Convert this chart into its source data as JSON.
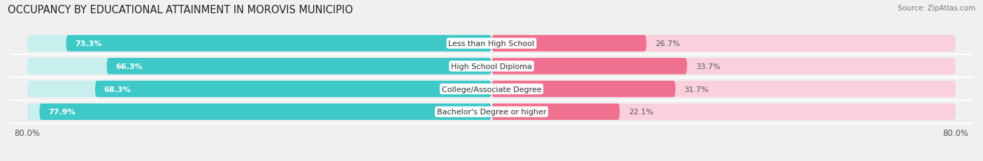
{
  "title": "OCCUPANCY BY EDUCATIONAL ATTAINMENT IN MOROVIS MUNICIPIO",
  "source": "Source: ZipAtlas.com",
  "categories": [
    "Less than High School",
    "High School Diploma",
    "College/Associate Degree",
    "Bachelor's Degree or higher"
  ],
  "owner_values": [
    73.3,
    66.3,
    68.3,
    77.9
  ],
  "renter_values": [
    26.7,
    33.7,
    31.7,
    22.1
  ],
  "owner_color": "#3ec8c8",
  "renter_color": "#f07090",
  "owner_light_color": "#c8eeee",
  "renter_light_color": "#fad0dc",
  "background_color": "#f0f0f0",
  "x_left_label": "80.0%",
  "x_right_label": "80.0%",
  "title_fontsize": 10.5,
  "source_fontsize": 7.5,
  "tick_fontsize": 8.5,
  "legend_fontsize": 8.5,
  "value_fontsize": 8,
  "category_fontsize": 8
}
